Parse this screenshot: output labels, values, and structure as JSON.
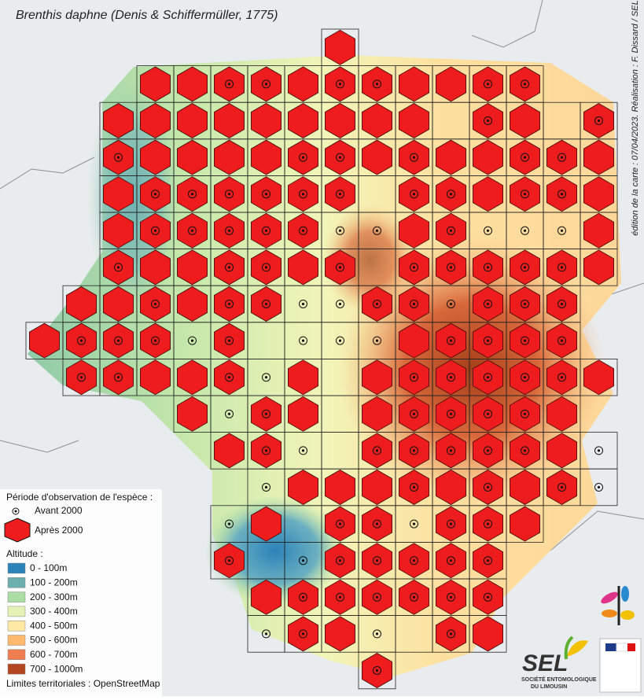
{
  "header": {
    "title": "Brenthis daphne (Denis & Schiffermüller, 1775)"
  },
  "credit": "édition de la carte : 07/04/2023. Réalisation : F. Dissard / SEL",
  "legend": {
    "title": "Période d'observation de l'espèce :",
    "items": [
      "Avant 2000",
      "Après 2000"
    ]
  },
  "altitude": {
    "title": "Altitude :",
    "items": [
      {
        "label": "0 - 100m",
        "color": "#2b83ba"
      },
      {
        "label": "100 - 200m",
        "color": "#6bb0af"
      },
      {
        "label": "200 - 300m",
        "color": "#abdda4"
      },
      {
        "label": "300 - 400m",
        "color": "#e3f2b5"
      },
      {
        "label": "400 - 500m",
        "color": "#fee8a4"
      },
      {
        "label": "500 - 600m",
        "color": "#fdb96e"
      },
      {
        "label": "600 - 700m",
        "color": "#ee7d4f"
      },
      {
        "label": "700 - 1000m",
        "color": "#b3461e"
      }
    ]
  },
  "source": "Limites territoriales : OpenStreetMap",
  "logo": {
    "name": "SEL",
    "subtitle_1": "SOCIÉTÉ ENTOMOLOGIQUE",
    "subtitle_2": "DU LIMOUSIN"
  }
}
